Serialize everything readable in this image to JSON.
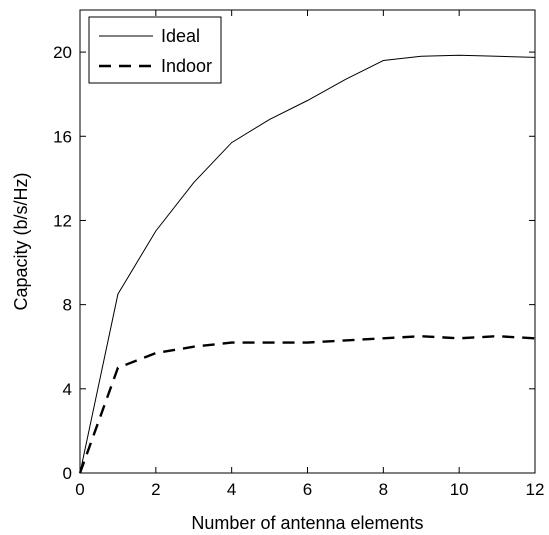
{
  "chart_data": {
    "type": "line",
    "title": "",
    "xlabel": "Number of antenna elements",
    "ylabel": "Capacity (b/s/Hz)",
    "xlim": [
      0,
      12
    ],
    "ylim": [
      0,
      22
    ],
    "x_ticks": [
      0,
      2,
      4,
      6,
      8,
      10,
      12
    ],
    "y_ticks": [
      0,
      4,
      8,
      12,
      16,
      20
    ],
    "x_tick_labels": [
      "0",
      "2",
      "4",
      "6",
      "8",
      "10",
      "12"
    ],
    "y_tick_labels": [
      "0",
      "4",
      "8",
      "12",
      "16",
      "20"
    ],
    "grid": false,
    "legend_position": "top-left",
    "series": [
      {
        "name": "Ideal",
        "style": "solid",
        "color": "#000000",
        "x": [
          0,
          1,
          2,
          3,
          4,
          5,
          6,
          7,
          8,
          9,
          10,
          11,
          12
        ],
        "values": [
          0,
          8.5,
          11.5,
          13.8,
          15.7,
          16.8,
          17.7,
          18.7,
          19.6,
          19.8,
          19.85,
          19.8,
          19.75
        ]
      },
      {
        "name": "Indoor",
        "style": "dashed",
        "color": "#000000",
        "x": [
          0,
          1,
          2,
          3,
          4,
          5,
          6,
          7,
          8,
          9,
          10,
          11,
          12
        ],
        "values": [
          0,
          5.0,
          5.7,
          6.0,
          6.2,
          6.2,
          6.2,
          6.3,
          6.4,
          6.5,
          6.4,
          6.5,
          6.4
        ]
      }
    ]
  }
}
